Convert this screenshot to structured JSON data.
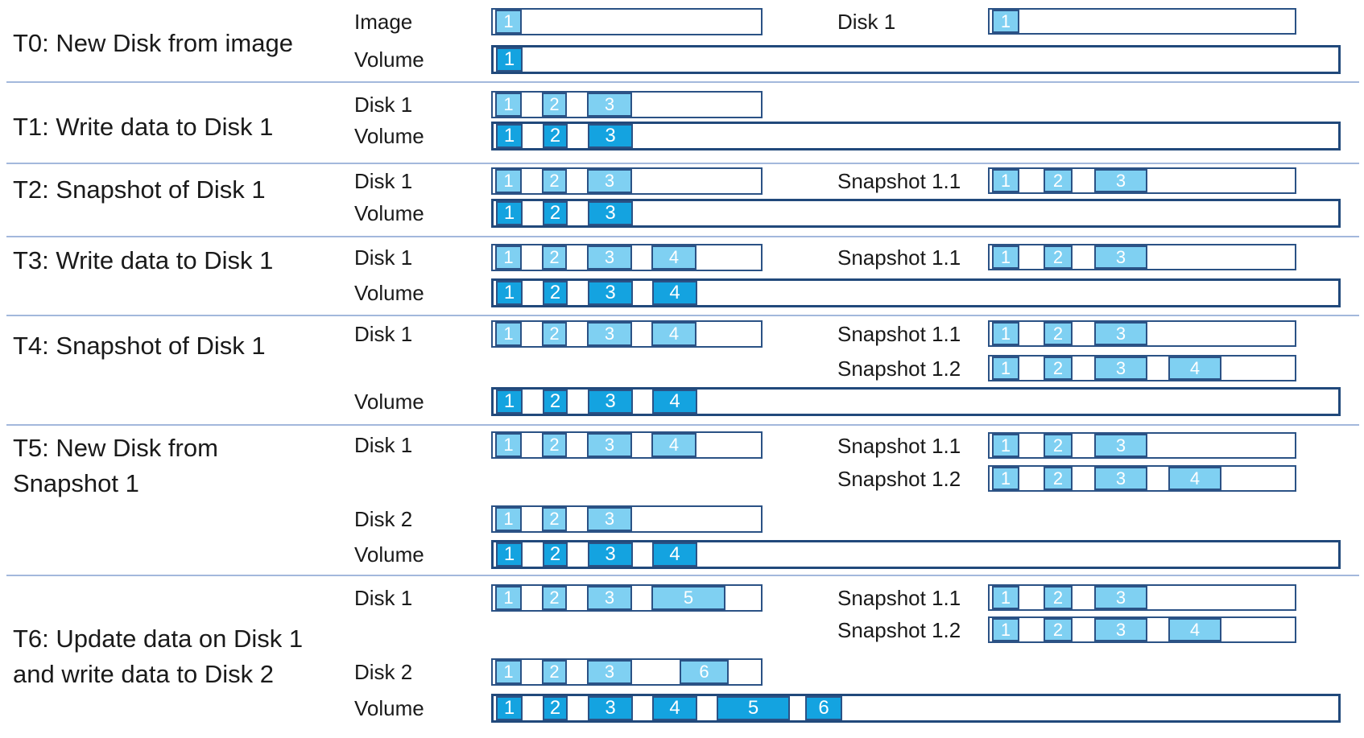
{
  "colors": {
    "block_light": "#7FD0F2",
    "block_dark": "#14A3E0",
    "bar_border": "#2B5285",
    "bar_border_heavy": "#21497B",
    "divider": "#A3B8DC",
    "text": "#1A1A1A",
    "block_number_text": "#FFFFFF"
  },
  "sections": [
    {
      "id": "t0",
      "title_lines": [
        "T0: New Disk from image"
      ],
      "rows": [
        {
          "label": "Image",
          "kind": "image",
          "variant": "light",
          "blocks": [
            1
          ]
        },
        {
          "label": "Disk 1",
          "kind": "disk",
          "variant": "light",
          "blocks": [
            1
          ]
        },
        {
          "label": "Volume",
          "kind": "volume",
          "variant": "dark",
          "blocks": [
            1
          ]
        }
      ]
    },
    {
      "id": "t1",
      "title_lines": [
        "T1: Write data to Disk 1"
      ],
      "rows": [
        {
          "label": "Disk 1",
          "kind": "disk",
          "variant": "light",
          "blocks": [
            1,
            2,
            3
          ]
        },
        {
          "label": "Volume",
          "kind": "volume",
          "variant": "dark",
          "blocks": [
            1,
            2,
            3
          ]
        }
      ]
    },
    {
      "id": "t2",
      "title_lines": [
        "T2: Snapshot of Disk 1"
      ],
      "rows": [
        {
          "label": "Disk 1",
          "kind": "disk",
          "variant": "light",
          "blocks": [
            1,
            2,
            3
          ]
        },
        {
          "label": "Snapshot 1.1",
          "kind": "snapshot",
          "variant": "light",
          "blocks": [
            1,
            2,
            3
          ]
        },
        {
          "label": "Volume",
          "kind": "volume",
          "variant": "dark",
          "blocks": [
            1,
            2,
            3
          ]
        }
      ]
    },
    {
      "id": "t3",
      "title_lines": [
        "T3: Write data to Disk 1"
      ],
      "rows": [
        {
          "label": "Disk 1",
          "kind": "disk",
          "variant": "light",
          "blocks": [
            1,
            2,
            3,
            4
          ]
        },
        {
          "label": "Snapshot 1.1",
          "kind": "snapshot",
          "variant": "light",
          "blocks": [
            1,
            2,
            3
          ]
        },
        {
          "label": "Volume",
          "kind": "volume",
          "variant": "dark",
          "blocks": [
            1,
            2,
            3,
            4
          ]
        }
      ]
    },
    {
      "id": "t4",
      "title_lines": [
        "T4: Snapshot of Disk 1"
      ],
      "rows": [
        {
          "label": "Disk 1",
          "kind": "disk",
          "variant": "light",
          "blocks": [
            1,
            2,
            3,
            4
          ]
        },
        {
          "label": "Snapshot 1.1",
          "kind": "snapshot",
          "variant": "light",
          "blocks": [
            1,
            2,
            3
          ]
        },
        {
          "label": "Snapshot 1.2",
          "kind": "snapshot",
          "variant": "light",
          "blocks": [
            1,
            2,
            3,
            4
          ]
        },
        {
          "label": "Volume",
          "kind": "volume",
          "variant": "dark",
          "blocks": [
            1,
            2,
            3,
            4
          ]
        }
      ]
    },
    {
      "id": "t5",
      "title_lines": [
        "T5: New Disk from",
        "Snapshot 1"
      ],
      "rows": [
        {
          "label": "Disk 1",
          "kind": "disk",
          "variant": "light",
          "blocks": [
            1,
            2,
            3,
            4
          ]
        },
        {
          "label": "Snapshot 1.1",
          "kind": "snapshot",
          "variant": "light",
          "blocks": [
            1,
            2,
            3
          ]
        },
        {
          "label": "Snapshot 1.2",
          "kind": "snapshot",
          "variant": "light",
          "blocks": [
            1,
            2,
            3,
            4
          ]
        },
        {
          "label": "Disk 2",
          "kind": "disk",
          "variant": "light",
          "blocks": [
            1,
            2,
            3
          ]
        },
        {
          "label": "Volume",
          "kind": "volume",
          "variant": "dark",
          "blocks": [
            1,
            2,
            3,
            4
          ]
        }
      ]
    },
    {
      "id": "t6",
      "title_lines": [
        "T6: Update data on Disk 1",
        "and write data to Disk 2"
      ],
      "rows": [
        {
          "label": "Disk 1",
          "kind": "disk",
          "variant": "light",
          "blocks": [
            1,
            2,
            3,
            5
          ]
        },
        {
          "label": "Snapshot 1.1",
          "kind": "snapshot",
          "variant": "light",
          "blocks": [
            1,
            2,
            3
          ]
        },
        {
          "label": "Snapshot 1.2",
          "kind": "snapshot",
          "variant": "light",
          "blocks": [
            1,
            2,
            3,
            4
          ]
        },
        {
          "label": "Disk 2",
          "kind": "disk",
          "variant": "light",
          "blocks": [
            1,
            2,
            3,
            6
          ]
        },
        {
          "label": "Volume",
          "kind": "volume",
          "variant": "dark",
          "blocks": [
            1,
            2,
            3,
            4,
            5,
            6
          ]
        }
      ]
    }
  ]
}
